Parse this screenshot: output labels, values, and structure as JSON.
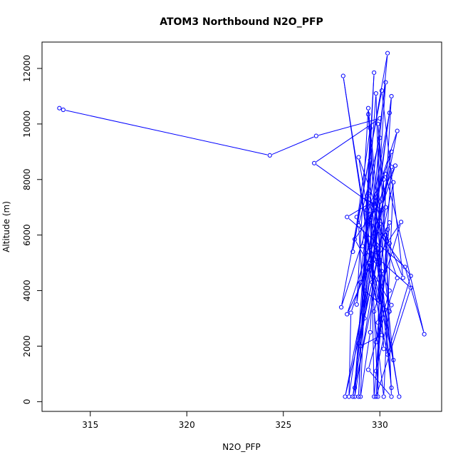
{
  "chart_data": {
    "type": "scatter",
    "title": "ATOM3 Northbound N2O_PFP",
    "xlabel": "N2O_PFP",
    "ylabel": "Altitude (m)",
    "xlim": [
      312.5,
      333.2
    ],
    "ylim": [
      -350,
      12950
    ],
    "xticks": [
      315,
      320,
      325,
      330
    ],
    "yticks": [
      0,
      2000,
      4000,
      6000,
      8000,
      10000,
      12000
    ],
    "grid": false,
    "point_color": "#0000ff",
    "line_color": "#0000ff",
    "series": [
      {
        "points": [
          [
            313.4,
            10570
          ],
          [
            313.6,
            10510
          ],
          [
            324.3,
            8870
          ],
          [
            326.7,
            9570
          ],
          [
            330.0,
            10200
          ],
          [
            326.6,
            8590
          ],
          [
            329.5,
            7150
          ],
          [
            328.3,
            6650
          ],
          [
            331.3,
            4850
          ],
          [
            332.3,
            2430
          ],
          [
            330.3,
            8200
          ],
          [
            329.3,
            6900
          ],
          [
            329.7,
            11850
          ],
          [
            328.9,
            180
          ],
          [
            329.5,
            9850
          ],
          [
            328.6,
            5400
          ],
          [
            330.4,
            12550
          ],
          [
            329.0,
            2000
          ],
          [
            330.1,
            2400
          ],
          [
            328.1,
            11730
          ],
          [
            329.9,
            3650
          ],
          [
            330.2,
            8000
          ],
          [
            328.7,
            500
          ],
          [
            329.8,
            11100
          ],
          [
            330.0,
            6400
          ],
          [
            328.5,
            3200
          ],
          [
            328.4,
            180
          ],
          [
            330.5,
            10400
          ],
          [
            329.3,
            5900
          ],
          [
            330.7,
            1500
          ],
          [
            329.4,
            10570
          ],
          [
            328.8,
            3500
          ],
          [
            330.3,
            11500
          ],
          [
            329.6,
            4300
          ],
          [
            328.2,
            180
          ],
          [
            330.9,
            9750
          ],
          [
            329.6,
            7000
          ],
          [
            330.6,
            500
          ],
          [
            329.4,
            10350
          ],
          [
            330.2,
            1900
          ],
          [
            329.9,
            5500
          ],
          [
            328.3,
            3150
          ],
          [
            330.8,
            8500
          ],
          [
            329.5,
            6550
          ],
          [
            329.9,
            180
          ],
          [
            330.0,
            7200
          ],
          [
            328.7,
            5850
          ],
          [
            330.6,
            3480
          ],
          [
            329.8,
            1100
          ],
          [
            330.4,
            6200
          ],
          [
            328.6,
            180
          ],
          [
            330.6,
            11000
          ],
          [
            329.9,
            2850
          ],
          [
            330.1,
            4700
          ],
          [
            329.1,
            5600
          ],
          [
            329.5,
            8700
          ],
          [
            329.7,
            180
          ],
          [
            330.5,
            6450
          ],
          [
            329.0,
            4300
          ],
          [
            331.1,
            6470
          ],
          [
            329.7,
            3250
          ],
          [
            330.2,
            180
          ],
          [
            330.7,
            7900
          ],
          [
            329.2,
            3000
          ],
          [
            328.9,
            6350
          ],
          [
            330.0,
            9500
          ],
          [
            329.5,
            2500
          ],
          [
            329.0,
            180
          ],
          [
            329.4,
            7500
          ],
          [
            330.9,
            4450
          ],
          [
            329.8,
            2150
          ],
          [
            330.5,
            5700
          ],
          [
            328.9,
            8800
          ],
          [
            331.0,
            180
          ],
          [
            329.5,
            6750
          ],
          [
            329.2,
            4000
          ],
          [
            330.5,
            3250
          ],
          [
            329.9,
            10000
          ],
          [
            330.3,
            7000
          ],
          [
            328.7,
            180
          ],
          [
            329.4,
            6600
          ],
          [
            331.6,
            4530
          ],
          [
            330.4,
            1700
          ],
          [
            329.4,
            5000
          ],
          [
            330.6,
            8450
          ],
          [
            329.8,
            180
          ],
          [
            331.6,
            4100
          ],
          [
            330.0,
            5100
          ],
          [
            329.3,
            7300
          ],
          [
            330.1,
            6900
          ],
          [
            328.9,
            2100
          ],
          [
            330.6,
            9000
          ],
          [
            328.0,
            3400
          ],
          [
            330.1,
            11200
          ],
          [
            331.2,
            4460
          ],
          [
            330.3,
            6000
          ],
          [
            330.6,
            180
          ],
          [
            329.4,
            1150
          ],
          [
            330.5,
            4000
          ],
          [
            328.8,
            6650
          ]
        ]
      }
    ]
  }
}
